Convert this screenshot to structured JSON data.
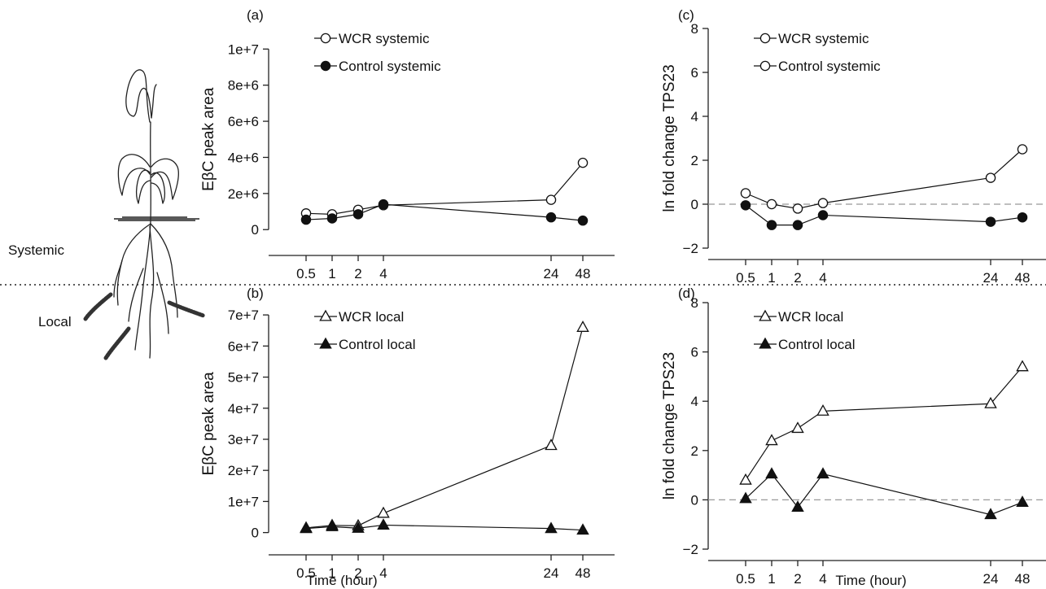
{
  "figure": {
    "systemic_label": "Systemic",
    "local_label": "Local",
    "colors": {
      "ink": "#111111",
      "open_marker_fill": "#ffffff",
      "baseline": "#999999"
    },
    "icons": [
      "maize-plant-illustration",
      "larva-icon"
    ]
  },
  "chart_data": [
    {
      "id": "a",
      "panel_label": "(a)",
      "type": "line",
      "title": "",
      "xlabel": "",
      "ylabel": "EβC peak area",
      "x_categories": [
        "0.5",
        "1",
        "2",
        "4",
        "24",
        "48"
      ],
      "yticks": [
        0,
        2000000,
        4000000,
        6000000,
        8000000,
        10000000
      ],
      "ytick_labels": [
        "0",
        "2e+6",
        "4e+6",
        "6e+6",
        "8e+6",
        "1e+7"
      ],
      "ylim": [
        -800000,
        11500000
      ],
      "zero_line": false,
      "legend_position": "top-left",
      "series": [
        {
          "name": "WCR systemic",
          "marker": "circle",
          "filled": false,
          "values": [
            900000,
            850000,
            1100000,
            1350000,
            1650000,
            3700000
          ]
        },
        {
          "name": "Control systemic",
          "marker": "circle",
          "filled": true,
          "values": [
            550000,
            620000,
            850000,
            1400000,
            680000,
            500000
          ]
        }
      ]
    },
    {
      "id": "b",
      "panel_label": "(b)",
      "type": "line",
      "title": "",
      "xlabel": "",
      "ylabel": "EβC peak area",
      "x_categories": [
        "0.5",
        "1",
        "2",
        "4",
        "24",
        "48"
      ],
      "yticks": [
        0,
        10000000,
        20000000,
        30000000,
        40000000,
        50000000,
        60000000,
        70000000
      ],
      "ytick_labels": [
        "0",
        "1e+7",
        "2e+7",
        "3e+7",
        "4e+7",
        "5e+7",
        "6e+7",
        "7e+7"
      ],
      "ylim": [
        -3500000,
        75000000
      ],
      "zero_line": false,
      "legend_position": "top-left",
      "series": [
        {
          "name": "WCR local",
          "marker": "triangle",
          "filled": false,
          "values": [
            1500000,
            2300000,
            2200000,
            6200000,
            28000000,
            66000000
          ]
        },
        {
          "name": "Control local",
          "marker": "triangle",
          "filled": true,
          "values": [
            1300000,
            1900000,
            1400000,
            2400000,
            1300000,
            800000
          ]
        }
      ]
    },
    {
      "id": "c",
      "panel_label": "(c)",
      "type": "line",
      "title": "",
      "xlabel": "",
      "ylabel": "ln fold change TPS23",
      "x_categories": [
        "0.5",
        "1",
        "2",
        "4",
        "24",
        "48"
      ],
      "yticks": [
        -2,
        0,
        2,
        4,
        6,
        8
      ],
      "ytick_labels": [
        "−2",
        "0",
        "2",
        "4",
        "6",
        "8"
      ],
      "ylim": [
        -2,
        8
      ],
      "zero_line": true,
      "legend_position": "top-left",
      "series": [
        {
          "name": "WCR systemic",
          "marker": "circle",
          "filled": false,
          "values": [
            0.5,
            0.0,
            -0.2,
            0.05,
            1.2,
            2.5
          ]
        },
        {
          "name": "Control systemic",
          "marker": "circle",
          "filled": true,
          "values": [
            -0.05,
            -0.95,
            -0.95,
            -0.5,
            -0.8,
            -0.6
          ]
        }
      ]
    },
    {
      "id": "d",
      "panel_label": "(d)",
      "type": "line",
      "title": "",
      "xlabel": "Time (hour)",
      "ylabel": "ln fold change TPS23",
      "x_categories": [
        "0.5",
        "1",
        "2",
        "4",
        "24",
        "48"
      ],
      "yticks": [
        -2,
        0,
        2,
        4,
        6,
        8
      ],
      "ytick_labels": [
        "−2",
        "0",
        "2",
        "4",
        "6",
        "8"
      ],
      "ylim": [
        -2,
        8
      ],
      "zero_line": true,
      "legend_position": "top-left",
      "series": [
        {
          "name": "WCR local",
          "marker": "triangle",
          "filled": false,
          "values": [
            0.8,
            2.4,
            2.9,
            3.6,
            3.9,
            5.4
          ]
        },
        {
          "name": "Control local",
          "marker": "triangle",
          "filled": true,
          "values": [
            0.05,
            1.05,
            -0.3,
            1.05,
            -0.6,
            -0.1
          ]
        }
      ]
    }
  ],
  "shared_xlabel_b": "Time (hour)"
}
